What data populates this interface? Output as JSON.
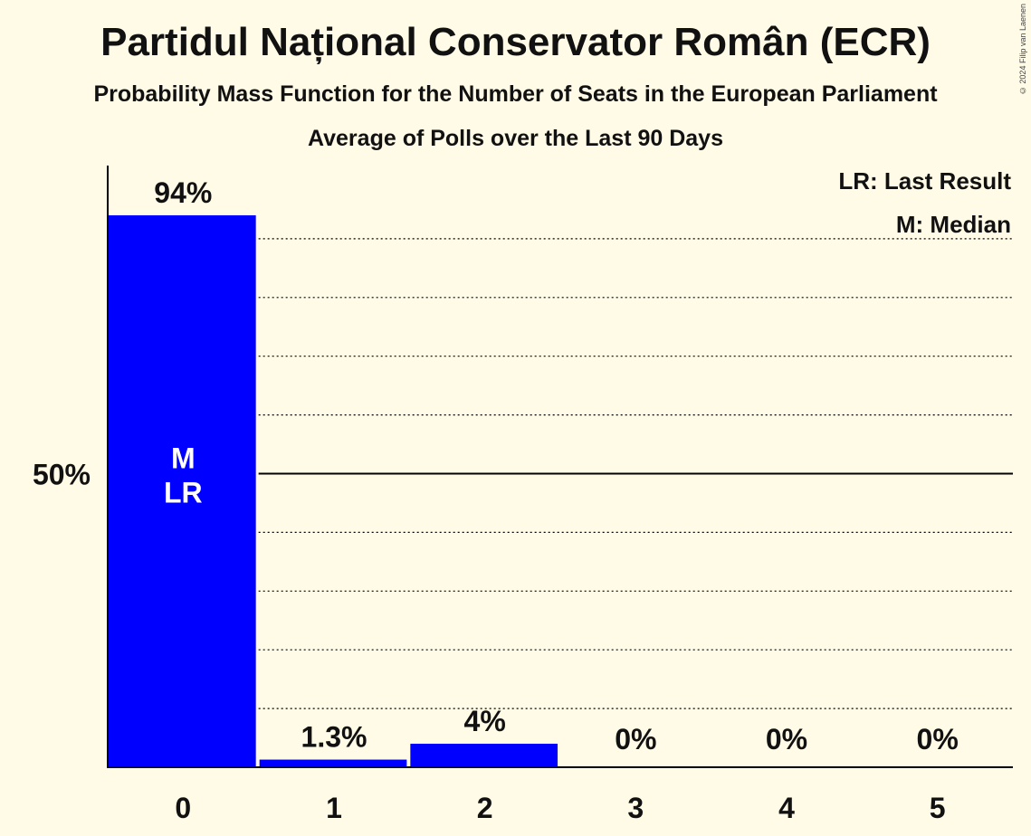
{
  "title": "Partidul Național Conservator Român (ECR)",
  "subtitle": "Probability Mass Function for the Number of Seats in the European Parliament",
  "period": "Average of Polls over the Last 90 Days",
  "copyright": "© 2024 Filip van Laenen",
  "legend": {
    "last_result": "LR: Last Result",
    "median": "M: Median"
  },
  "colors": {
    "bar": "#0000FF",
    "background": "#FFFBE6",
    "axis": "#000000"
  },
  "chart_data": {
    "type": "bar",
    "categories": [
      "0",
      "1",
      "2",
      "3",
      "4",
      "5"
    ],
    "values": [
      94,
      1.3,
      4,
      0,
      0,
      0
    ],
    "value_labels": [
      "94%",
      "1.3%",
      "4%",
      "0%",
      "0%",
      "0%"
    ],
    "bar_annotations": [
      "M\nLR",
      "",
      "",
      "",
      "",
      ""
    ],
    "ylim": [
      0,
      100
    ],
    "ytick_labels": [
      {
        "value": 50,
        "label": "50%"
      }
    ],
    "gridlines": [
      10,
      20,
      30,
      40,
      60,
      70,
      80,
      90
    ],
    "legend_position": "top-right"
  }
}
